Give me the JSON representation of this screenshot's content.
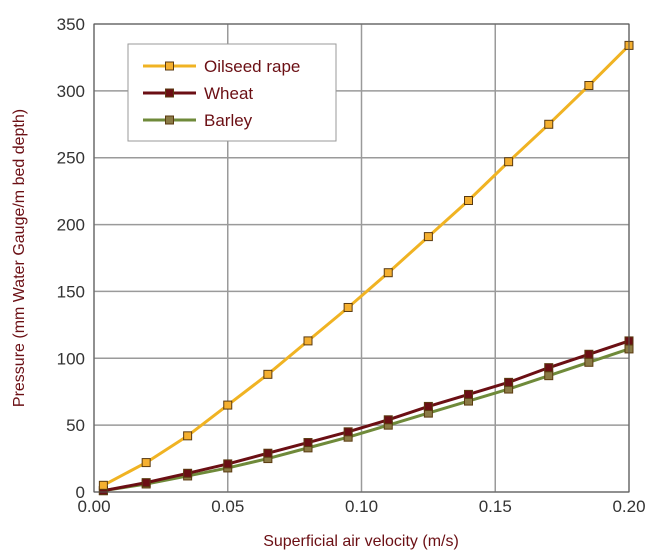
{
  "chart_data": {
    "type": "line",
    "title": "",
    "xlabel": "Superficial air velocity (m/s)",
    "ylabel": "Pressure (mm Water Gauge/m bed depth)",
    "xlim": [
      0,
      0.2
    ],
    "ylim": [
      0,
      350
    ],
    "xticks": [
      "0.00",
      "0.05",
      "0.10",
      "0.15",
      "0.20"
    ],
    "yticks": [
      "0",
      "50",
      "100",
      "150",
      "200",
      "250",
      "300",
      "350"
    ],
    "grid": true,
    "legend_position": "top-left",
    "series": [
      {
        "name": "Oilseed rape",
        "color": "#f0b323",
        "marker_fill": "#f5b030",
        "x": [
          0.0035,
          0.0195,
          0.035,
          0.05,
          0.065,
          0.08,
          0.095,
          0.11,
          0.125,
          0.14,
          0.155,
          0.17,
          0.185,
          0.2
        ],
        "y": [
          5,
          22,
          42,
          65,
          88,
          113,
          138,
          164,
          191,
          218,
          247,
          275,
          304,
          334
        ]
      },
      {
        "name": "Wheat",
        "color": "#6b0f14",
        "marker_fill": "#6b0f14",
        "x": [
          0.0035,
          0.0195,
          0.035,
          0.05,
          0.065,
          0.08,
          0.095,
          0.11,
          0.125,
          0.14,
          0.155,
          0.17,
          0.185,
          0.2
        ],
        "y": [
          1,
          7,
          14,
          21,
          29,
          37,
          45,
          54,
          64,
          73,
          82,
          93,
          103,
          113
        ]
      },
      {
        "name": "Barley",
        "color": "#6f8a3a",
        "marker_fill": "#8a7a45",
        "x": [
          0.0035,
          0.0195,
          0.035,
          0.05,
          0.065,
          0.08,
          0.095,
          0.11,
          0.125,
          0.14,
          0.155,
          0.17,
          0.185,
          0.2
        ],
        "y": [
          1,
          6,
          12,
          18,
          25,
          33,
          41,
          50,
          59,
          68,
          77,
          87,
          97,
          107
        ]
      }
    ]
  }
}
